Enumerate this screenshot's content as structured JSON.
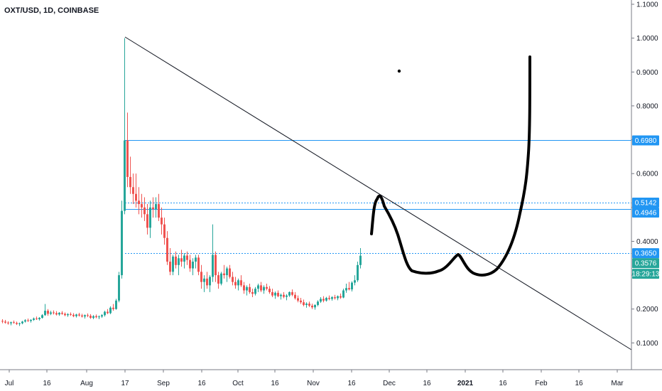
{
  "header": {
    "symbol_label": "OXT/USD, 1D, COINBASE"
  },
  "colors": {
    "up": "#26a69a",
    "down": "#ef5350",
    "level_line": "#2196f3",
    "price_badge_blue": "#2196f3",
    "price_badge_green": "#26a69a",
    "trendline": "#131722",
    "drawing": "#000000",
    "axis_text": "#131722"
  },
  "chart_data": {
    "type": "candlestick",
    "title": "OXT/USD, 1D, COINBASE",
    "ylim": [
      0.0,
      1.1
    ],
    "y_scale": "linear",
    "grid": false,
    "y_ticks": [
      "1.1000",
      "1.0000",
      "0.9000",
      "0.8000",
      "0.7000",
      "0.6000",
      "0.5000",
      "0.4000",
      "0.3000",
      "0.2000",
      "0.1000"
    ],
    "x_ticks": [
      "Jul",
      "16",
      "Aug",
      "17",
      "Sep",
      "16",
      "Oct",
      "16",
      "Nov",
      "16",
      "Dec",
      "16",
      "2021",
      "16",
      "Feb",
      "16",
      "Mar"
    ],
    "price_labels": [
      {
        "text": "0.6980",
        "value": 0.698,
        "style": "blue"
      },
      {
        "text": "0.5142",
        "value": 0.5142,
        "style": "blue"
      },
      {
        "text": "0.4946",
        "value": 0.4946,
        "style": "blue"
      },
      {
        "text": "0.3650",
        "value": 0.365,
        "style": "blue"
      },
      {
        "text": "0.3576",
        "value": 0.3576,
        "style": "green"
      },
      {
        "text": "18:29:13",
        "style": "green"
      }
    ],
    "horizontal_levels": [
      {
        "value": 0.698,
        "dashed": false
      },
      {
        "value": 0.5142,
        "dashed": true
      },
      {
        "value": 0.4946,
        "dashed": false
      },
      {
        "value": 0.365,
        "dashed": true
      }
    ],
    "candles": [
      [
        0.165,
        0.17,
        0.158,
        0.163
      ],
      [
        0.163,
        0.168,
        0.157,
        0.16
      ],
      [
        0.16,
        0.164,
        0.154,
        0.158
      ],
      [
        0.158,
        0.163,
        0.152,
        0.161
      ],
      [
        0.161,
        0.166,
        0.157,
        0.159
      ],
      [
        0.159,
        0.163,
        0.153,
        0.156
      ],
      [
        0.156,
        0.16,
        0.15,
        0.158
      ],
      [
        0.158,
        0.165,
        0.155,
        0.163
      ],
      [
        0.163,
        0.17,
        0.16,
        0.167
      ],
      [
        0.167,
        0.172,
        0.162,
        0.165
      ],
      [
        0.165,
        0.17,
        0.16,
        0.168
      ],
      [
        0.168,
        0.175,
        0.165,
        0.172
      ],
      [
        0.172,
        0.178,
        0.168,
        0.17
      ],
      [
        0.17,
        0.176,
        0.166,
        0.174
      ],
      [
        0.174,
        0.185,
        0.172,
        0.182
      ],
      [
        0.182,
        0.215,
        0.18,
        0.195
      ],
      [
        0.195,
        0.2,
        0.18,
        0.186
      ],
      [
        0.186,
        0.195,
        0.182,
        0.19
      ],
      [
        0.19,
        0.196,
        0.184,
        0.188
      ],
      [
        0.188,
        0.194,
        0.181,
        0.184
      ],
      [
        0.184,
        0.191,
        0.18,
        0.189
      ],
      [
        0.189,
        0.194,
        0.183,
        0.186
      ],
      [
        0.186,
        0.19,
        0.179,
        0.182
      ],
      [
        0.182,
        0.188,
        0.177,
        0.185
      ],
      [
        0.185,
        0.19,
        0.18,
        0.183
      ],
      [
        0.183,
        0.188,
        0.176,
        0.179
      ],
      [
        0.179,
        0.186,
        0.175,
        0.184
      ],
      [
        0.184,
        0.189,
        0.178,
        0.181
      ],
      [
        0.181,
        0.186,
        0.175,
        0.178
      ],
      [
        0.178,
        0.184,
        0.172,
        0.182
      ],
      [
        0.182,
        0.187,
        0.176,
        0.18
      ],
      [
        0.18,
        0.185,
        0.171,
        0.174
      ],
      [
        0.174,
        0.182,
        0.17,
        0.179
      ],
      [
        0.179,
        0.184,
        0.173,
        0.176
      ],
      [
        0.176,
        0.181,
        0.17,
        0.178
      ],
      [
        0.178,
        0.185,
        0.174,
        0.182
      ],
      [
        0.182,
        0.195,
        0.178,
        0.192
      ],
      [
        0.192,
        0.2,
        0.185,
        0.188
      ],
      [
        0.188,
        0.208,
        0.185,
        0.204
      ],
      [
        0.204,
        0.215,
        0.195,
        0.2
      ],
      [
        0.2,
        0.23,
        0.198,
        0.225
      ],
      [
        0.225,
        0.31,
        0.22,
        0.3
      ],
      [
        0.3,
        0.52,
        0.29,
        0.49
      ],
      [
        0.49,
        1.0,
        0.48,
        0.698
      ],
      [
        0.698,
        0.78,
        0.56,
        0.59
      ],
      [
        0.59,
        0.65,
        0.54,
        0.56
      ],
      [
        0.56,
        0.6,
        0.51,
        0.54
      ],
      [
        0.54,
        0.6,
        0.5,
        0.52
      ],
      [
        0.52,
        0.56,
        0.48,
        0.51
      ],
      [
        0.51,
        0.54,
        0.47,
        0.5
      ],
      [
        0.5,
        0.53,
        0.46,
        0.48
      ],
      [
        0.48,
        0.51,
        0.42,
        0.44
      ],
      [
        0.44,
        0.52,
        0.41,
        0.5
      ],
      [
        0.5,
        0.53,
        0.47,
        0.495
      ],
      [
        0.495,
        0.53,
        0.47,
        0.51
      ],
      [
        0.51,
        0.54,
        0.46,
        0.47
      ],
      [
        0.47,
        0.5,
        0.42,
        0.45
      ],
      [
        0.45,
        0.47,
        0.39,
        0.41
      ],
      [
        0.41,
        0.43,
        0.33,
        0.34
      ],
      [
        0.34,
        0.38,
        0.3,
        0.31
      ],
      [
        0.31,
        0.36,
        0.3,
        0.355
      ],
      [
        0.355,
        0.37,
        0.32,
        0.33
      ],
      [
        0.33,
        0.36,
        0.3,
        0.35
      ],
      [
        0.35,
        0.375,
        0.325,
        0.34
      ],
      [
        0.34,
        0.365,
        0.32,
        0.358
      ],
      [
        0.358,
        0.37,
        0.33,
        0.345
      ],
      [
        0.345,
        0.36,
        0.31,
        0.32
      ],
      [
        0.32,
        0.35,
        0.3,
        0.34
      ],
      [
        0.34,
        0.36,
        0.32,
        0.352
      ],
      [
        0.352,
        0.36,
        0.3,
        0.31
      ],
      [
        0.31,
        0.33,
        0.26,
        0.28
      ],
      [
        0.28,
        0.3,
        0.25,
        0.29
      ],
      [
        0.29,
        0.31,
        0.26,
        0.27
      ],
      [
        0.27,
        0.3,
        0.25,
        0.295
      ],
      [
        0.295,
        0.45,
        0.28,
        0.36
      ],
      [
        0.36,
        0.37,
        0.28,
        0.3
      ],
      [
        0.3,
        0.31,
        0.26,
        0.275
      ],
      [
        0.275,
        0.31,
        0.27,
        0.305
      ],
      [
        0.305,
        0.33,
        0.29,
        0.3
      ],
      [
        0.3,
        0.325,
        0.28,
        0.32
      ],
      [
        0.32,
        0.33,
        0.29,
        0.295
      ],
      [
        0.295,
        0.31,
        0.27,
        0.28
      ],
      [
        0.28,
        0.295,
        0.26,
        0.27
      ],
      [
        0.27,
        0.29,
        0.255,
        0.285
      ],
      [
        0.285,
        0.3,
        0.265,
        0.27
      ],
      [
        0.27,
        0.28,
        0.245,
        0.255
      ],
      [
        0.255,
        0.27,
        0.24,
        0.265
      ],
      [
        0.265,
        0.275,
        0.245,
        0.25
      ],
      [
        0.25,
        0.26,
        0.235,
        0.245
      ],
      [
        0.245,
        0.265,
        0.24,
        0.26
      ],
      [
        0.26,
        0.275,
        0.25,
        0.27
      ],
      [
        0.27,
        0.28,
        0.25,
        0.255
      ],
      [
        0.255,
        0.27,
        0.245,
        0.265
      ],
      [
        0.265,
        0.275,
        0.255,
        0.26
      ],
      [
        0.26,
        0.268,
        0.245,
        0.25
      ],
      [
        0.25,
        0.26,
        0.235,
        0.24
      ],
      [
        0.24,
        0.252,
        0.23,
        0.248
      ],
      [
        0.248,
        0.255,
        0.235,
        0.238
      ],
      [
        0.238,
        0.246,
        0.228,
        0.242
      ],
      [
        0.242,
        0.25,
        0.232,
        0.236
      ],
      [
        0.236,
        0.244,
        0.226,
        0.24
      ],
      [
        0.24,
        0.252,
        0.236,
        0.25
      ],
      [
        0.25,
        0.258,
        0.238,
        0.242
      ],
      [
        0.242,
        0.25,
        0.228,
        0.232
      ],
      [
        0.232,
        0.24,
        0.22,
        0.225
      ],
      [
        0.225,
        0.233,
        0.215,
        0.22
      ],
      [
        0.22,
        0.228,
        0.208,
        0.212
      ],
      [
        0.212,
        0.22,
        0.204,
        0.216
      ],
      [
        0.216,
        0.222,
        0.206,
        0.21
      ],
      [
        0.21,
        0.216,
        0.2,
        0.205
      ],
      [
        0.205,
        0.214,
        0.198,
        0.212
      ],
      [
        0.212,
        0.226,
        0.208,
        0.222
      ],
      [
        0.222,
        0.235,
        0.218,
        0.23
      ],
      [
        0.23,
        0.238,
        0.22,
        0.225
      ],
      [
        0.225,
        0.236,
        0.222,
        0.233
      ],
      [
        0.233,
        0.24,
        0.226,
        0.23
      ],
      [
        0.23,
        0.238,
        0.225,
        0.235
      ],
      [
        0.235,
        0.242,
        0.228,
        0.232
      ],
      [
        0.232,
        0.24,
        0.226,
        0.238
      ],
      [
        0.238,
        0.246,
        0.23,
        0.234
      ],
      [
        0.234,
        0.26,
        0.232,
        0.255
      ],
      [
        0.255,
        0.275,
        0.248,
        0.262
      ],
      [
        0.262,
        0.28,
        0.255,
        0.258
      ],
      [
        0.258,
        0.282,
        0.252,
        0.278
      ],
      [
        0.278,
        0.3,
        0.27,
        0.285
      ],
      [
        0.285,
        0.34,
        0.28,
        0.33
      ],
      [
        0.33,
        0.38,
        0.32,
        0.3576
      ]
    ]
  }
}
